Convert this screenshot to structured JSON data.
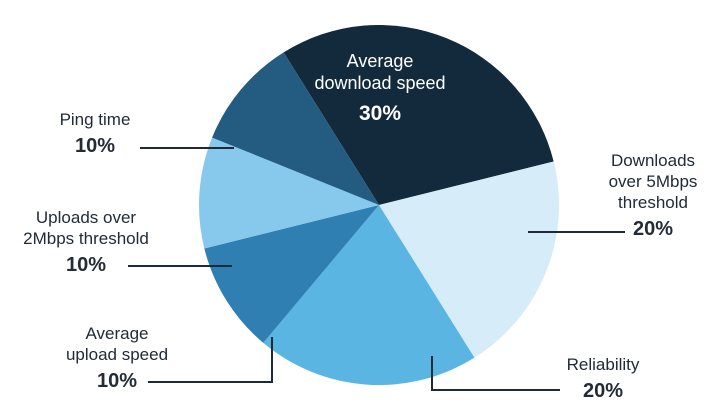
{
  "chart_data": {
    "type": "pie",
    "title": "",
    "slices": [
      {
        "label": "Average download speed",
        "display_label": "Average\ndownload speed",
        "value": 30,
        "value_label": "30%",
        "color": "#132a3c"
      },
      {
        "label": "Downloads over 5Mbps threshold",
        "display_label": "Downloads\nover 5Mbps\nthreshold",
        "value": 20,
        "value_label": "20%",
        "color": "#d6ecf8"
      },
      {
        "label": "Reliability",
        "display_label": "Reliability",
        "value": 20,
        "value_label": "20%",
        "color": "#5bb5e3"
      },
      {
        "label": "Average upload speed",
        "display_label": "Average\nupload speed",
        "value": 10,
        "value_label": "10%",
        "color": "#2f7fb3"
      },
      {
        "label": "Uploads over 2Mbps threshold",
        "display_label": "Uploads over\n2Mbps threshold",
        "value": 10,
        "value_label": "10%",
        "color": "#87c9ec"
      },
      {
        "label": "Ping time",
        "display_label": "Ping time",
        "value": 10,
        "value_label": "10%",
        "color": "#245b80"
      }
    ],
    "leader_line_color": "#1f2a36"
  }
}
